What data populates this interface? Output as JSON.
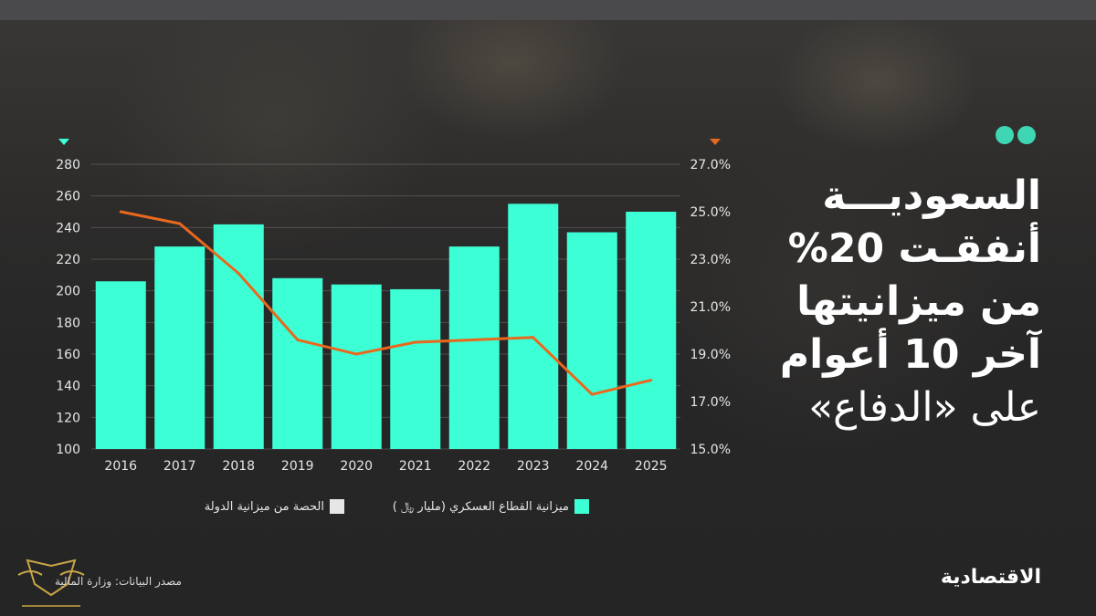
{
  "headline": {
    "lines": [
      "السعوديـــة",
      "أنفقـت 20%",
      "من ميزانيتها",
      "آخر 10 أعوام",
      "على «الدفاع»"
    ]
  },
  "legend": {
    "budget": "ميزانية القطاع العسكري (مليار ﷼ )",
    "share": "الحصة من ميزانية الدولة"
  },
  "source": "مصدر البيانات: وزارة المالية",
  "brand": "الاقتصادية",
  "colors": {
    "bar": "#3dffd5",
    "line": "#e8681e",
    "accent_dot": "#3fd6b3"
  },
  "chart_data": {
    "type": "bar",
    "categories": [
      "2016",
      "2017",
      "2018",
      "2019",
      "2020",
      "2021",
      "2022",
      "2023",
      "2024",
      "2025"
    ],
    "series": [
      {
        "name": "ميزانية القطاع العسكري (مليار ﷼ )",
        "type": "bar",
        "axis": "left",
        "values": [
          206,
          228,
          242,
          208,
          204,
          201,
          228,
          255,
          237,
          250
        ]
      },
      {
        "name": "الحصة من ميزانية الدولة",
        "type": "line",
        "axis": "right",
        "values": [
          25.0,
          24.5,
          22.4,
          19.6,
          19.0,
          19.5,
          19.6,
          19.7,
          17.3,
          17.9
        ]
      }
    ],
    "y_left": {
      "lim": [
        100,
        280
      ],
      "ticks": [
        "100",
        "120",
        "140",
        "160",
        "180",
        "200",
        "220",
        "240",
        "260",
        "280"
      ]
    },
    "y_right": {
      "lim": [
        15,
        27
      ],
      "ticks": [
        "15.0%",
        "17.0%",
        "19.0%",
        "21.0%",
        "23.0%",
        "25.0%",
        "27.0%"
      ]
    },
    "grid": true,
    "legend_position": "bottom"
  }
}
